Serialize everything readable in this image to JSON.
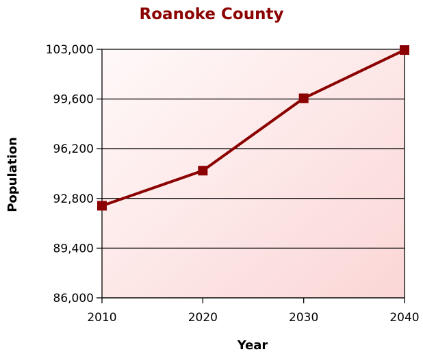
{
  "chart_data": {
    "type": "line",
    "title": "Roanoke County",
    "xlabel": "Year",
    "ylabel": "Population",
    "categories": [
      "2010",
      "2020",
      "2030",
      "2040"
    ],
    "series": [
      {
        "values": [
          92300,
          94700,
          99650,
          102950
        ]
      }
    ],
    "ylim": [
      86000,
      103000
    ],
    "yticks": [
      "86,000",
      "89,400",
      "92,800",
      "96,200",
      "99,600",
      "103,000"
    ],
    "ytick_values": [
      86000,
      89400,
      92800,
      96200,
      99600,
      103000
    ],
    "grid": true,
    "legend": "none",
    "colors": {
      "line": "#8b0000",
      "marker": "#8b0000",
      "title": "#8b0000",
      "plot_bg_light": "#fff8f8",
      "plot_bg_dark": "#fbd9d9"
    }
  }
}
